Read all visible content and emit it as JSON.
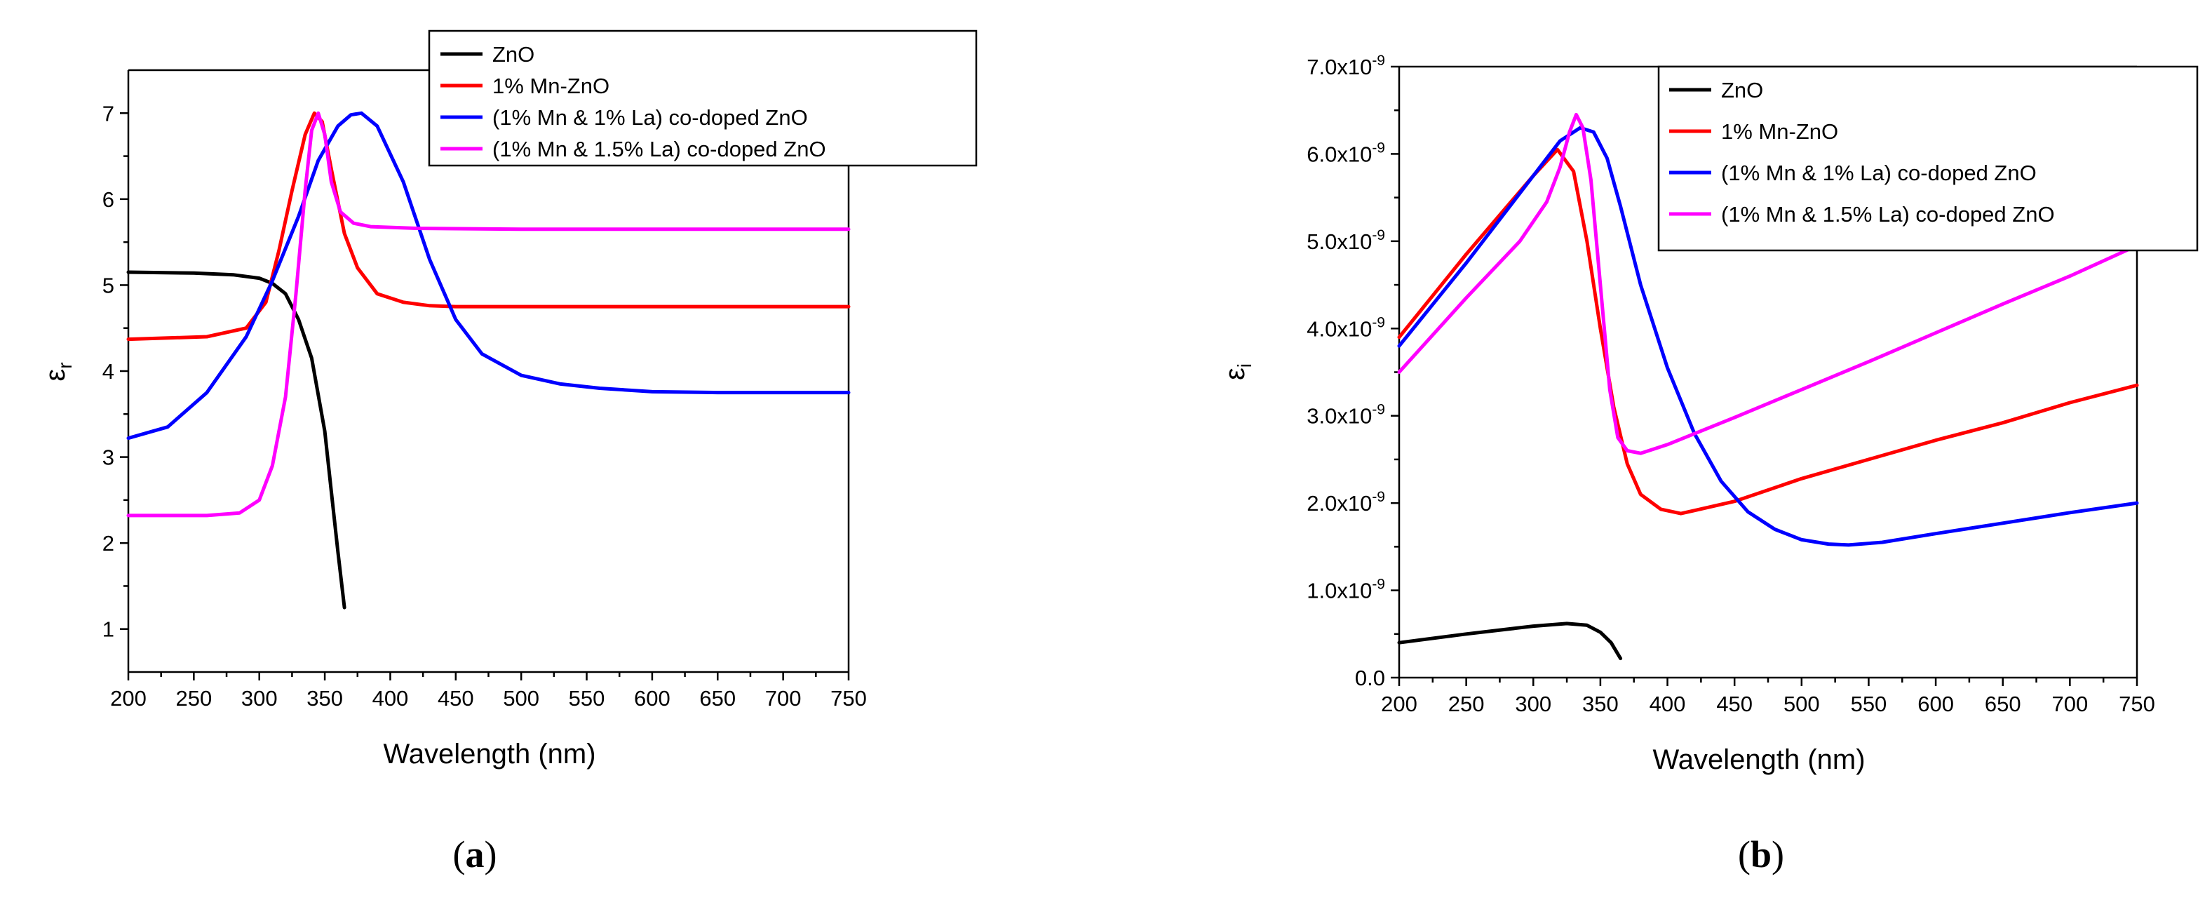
{
  "chart_data": [
    {
      "type": "line",
      "panel_label": {
        "open": "(",
        "letter": "a",
        "close": ")"
      },
      "xlabel": "Wavelength (nm)",
      "ylabel": {
        "base": "ε",
        "sub": "r"
      },
      "xlim": [
        200,
        750
      ],
      "ylim": [
        0.5,
        7.5
      ],
      "xticks": [
        "200",
        "250",
        "300",
        "350",
        "400",
        "450",
        "500",
        "550",
        "600",
        "650",
        "700",
        "750"
      ],
      "xtick_values": [
        200,
        250,
        300,
        350,
        400,
        450,
        500,
        550,
        600,
        650,
        700,
        750
      ],
      "yticks": [
        "1",
        "2",
        "3",
        "4",
        "5",
        "6",
        "7"
      ],
      "ytick_values": [
        1,
        2,
        3,
        4,
        5,
        6,
        7
      ],
      "legend_position": "top-right",
      "series": [
        {
          "name": "ZnO",
          "color": "#000000",
          "x": [
            200,
            250,
            280,
            300,
            310,
            320,
            330,
            340,
            350,
            355,
            360,
            365
          ],
          "y": [
            5.15,
            5.14,
            5.12,
            5.08,
            5.02,
            4.9,
            4.6,
            4.15,
            3.3,
            2.6,
            1.9,
            1.25
          ]
        },
        {
          "name": "1% Mn-ZnO",
          "color": "#ff0000",
          "x": [
            200,
            260,
            290,
            305,
            315,
            325,
            335,
            342,
            348,
            355,
            365,
            375,
            390,
            410,
            430,
            450,
            500,
            600,
            750
          ],
          "y": [
            4.37,
            4.4,
            4.5,
            4.8,
            5.4,
            6.1,
            6.75,
            7.0,
            6.9,
            6.35,
            5.6,
            5.2,
            4.9,
            4.8,
            4.76,
            4.75,
            4.75,
            4.75,
            4.75
          ]
        },
        {
          "name": "(1% Mn & 1% La) co-doped ZnO",
          "color": "#0000ff",
          "x": [
            200,
            230,
            260,
            290,
            310,
            330,
            345,
            360,
            370,
            378,
            390,
            410,
            430,
            450,
            470,
            500,
            530,
            560,
            600,
            650,
            750
          ],
          "y": [
            3.22,
            3.35,
            3.75,
            4.4,
            5.05,
            5.8,
            6.45,
            6.85,
            6.98,
            7.0,
            6.85,
            6.2,
            5.3,
            4.6,
            4.2,
            3.95,
            3.85,
            3.8,
            3.76,
            3.75,
            3.75
          ]
        },
        {
          "name": "(1% Mn & 1.5% La) co-doped ZnO",
          "color": "#ff00ff",
          "x": [
            200,
            260,
            285,
            300,
            310,
            320,
            328,
            335,
            340,
            345,
            350,
            355,
            362,
            372,
            385,
            420,
            500,
            750
          ],
          "y": [
            2.32,
            2.32,
            2.35,
            2.5,
            2.9,
            3.7,
            4.9,
            6.1,
            6.8,
            7.0,
            6.75,
            6.2,
            5.85,
            5.72,
            5.68,
            5.66,
            5.65,
            5.65
          ]
        }
      ]
    },
    {
      "type": "line",
      "panel_label": {
        "open": "(",
        "letter": "b",
        "close": ")"
      },
      "xlabel": "Wavelength (nm)",
      "ylabel": {
        "base": "ε",
        "sub": "i"
      },
      "xlim": [
        200,
        750
      ],
      "ylim": [
        0,
        7
      ],
      "xticks": [
        "200",
        "250",
        "300",
        "350",
        "400",
        "450",
        "500",
        "550",
        "600",
        "650",
        "700",
        "750"
      ],
      "xtick_values": [
        200,
        250,
        300,
        350,
        400,
        450,
        500,
        550,
        600,
        650,
        700,
        750
      ],
      "yticks": [
        {
          "base": "0.0",
          "exp": ""
        },
        {
          "base": "1.0x10",
          "exp": "-9"
        },
        {
          "base": "2.0x10",
          "exp": "-9"
        },
        {
          "base": "3.0x10",
          "exp": "-9"
        },
        {
          "base": "4.0x10",
          "exp": "-9"
        },
        {
          "base": "5.0x10",
          "exp": "-9"
        },
        {
          "base": "6.0x10",
          "exp": "-9"
        },
        {
          "base": "7.0x10",
          "exp": "-9"
        }
      ],
      "ytick_values": [
        0,
        1,
        2,
        3,
        4,
        5,
        6,
        7
      ],
      "legend_position": "top-right",
      "series": [
        {
          "name": "ZnO",
          "color": "#000000",
          "x": [
            200,
            250,
            300,
            325,
            340,
            350,
            358,
            365
          ],
          "y": [
            0.4,
            0.5,
            0.59,
            0.62,
            0.6,
            0.52,
            0.4,
            0.22
          ]
        },
        {
          "name": "1% Mn-ZnO",
          "color": "#ff0000",
          "x": [
            200,
            250,
            300,
            318,
            330,
            340,
            350,
            360,
            370,
            380,
            395,
            410,
            450,
            500,
            550,
            600,
            650,
            700,
            750
          ],
          "y": [
            3.9,
            4.85,
            5.75,
            6.05,
            5.8,
            5.0,
            4.0,
            3.1,
            2.45,
            2.1,
            1.93,
            1.88,
            2.02,
            2.28,
            2.5,
            2.72,
            2.92,
            3.15,
            3.35
          ]
        },
        {
          "name": "(1% Mn & 1% La) co-doped ZnO",
          "color": "#0000ff",
          "x": [
            200,
            250,
            300,
            320,
            335,
            345,
            355,
            365,
            380,
            400,
            420,
            440,
            460,
            480,
            500,
            520,
            535,
            560,
            600,
            650,
            700,
            750
          ],
          "y": [
            3.8,
            4.75,
            5.75,
            6.15,
            6.3,
            6.25,
            5.95,
            5.4,
            4.5,
            3.55,
            2.8,
            2.25,
            1.9,
            1.7,
            1.58,
            1.53,
            1.52,
            1.55,
            1.65,
            1.77,
            1.89,
            2.0
          ]
        },
        {
          "name": "(1% Mn & 1.5% La) co-doped ZnO",
          "color": "#ff00ff",
          "x": [
            200,
            250,
            290,
            310,
            320,
            327,
            332,
            337,
            343,
            350,
            357,
            363,
            370,
            380,
            400,
            450,
            500,
            550,
            600,
            650,
            700,
            750
          ],
          "y": [
            3.5,
            4.35,
            5.0,
            5.45,
            5.85,
            6.25,
            6.45,
            6.3,
            5.7,
            4.5,
            3.3,
            2.75,
            2.6,
            2.57,
            2.67,
            2.98,
            3.3,
            3.62,
            3.95,
            4.28,
            4.6,
            4.95
          ]
        }
      ]
    }
  ]
}
